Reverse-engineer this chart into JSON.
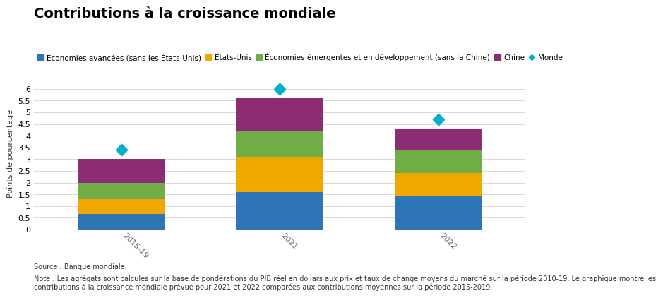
{
  "title": "Contributions à la croissance mondiale",
  "ylabel": "Points de pourcentage",
  "categories": [
    "2015-19",
    "2021",
    "2022"
  ],
  "series": {
    "Économies avancées (sans les États-Unis)": {
      "values": [
        0.65,
        1.6,
        1.4
      ],
      "color": "#2e75b6"
    },
    "États-Unis": {
      "values": [
        0.65,
        1.5,
        1.0
      ],
      "color": "#f0a800"
    },
    "Économies émergentes et en développement (sans la Chine)": {
      "values": [
        0.7,
        1.1,
        1.0
      ],
      "color": "#70ad47"
    },
    "Chine": {
      "values": [
        1.0,
        1.4,
        0.9
      ],
      "color": "#8b2c74"
    }
  },
  "monde_values": [
    3.4,
    6.0,
    4.7
  ],
  "monde_color": "#00b0c8",
  "ylim": [
    0,
    6.5
  ],
  "yticks": [
    0,
    0.5,
    1.0,
    1.5,
    2.0,
    2.5,
    3.0,
    3.5,
    4.0,
    4.5,
    5.0,
    5.5,
    6.0
  ],
  "source": "Source : Banque mondiale.",
  "note": "Note : Les agrégats sont calculés sur la base de pondérations du PIB réel en dollars aux prix et taux de change moyens du marché sur la période 2010-19. Le graphique montre les\ncontributions à la croissance mondiale prévue pour 2021 et 2022 comparées aux contributions moyennes sur la période 2015-2019.",
  "bar_width": 0.55,
  "background_color": "#ffffff",
  "grid_color": "#d9d9d9",
  "title_fontsize": 14,
  "ylabel_fontsize": 8,
  "legend_fontsize": 7.5,
  "tick_fontsize": 8,
  "note_fontsize": 7
}
